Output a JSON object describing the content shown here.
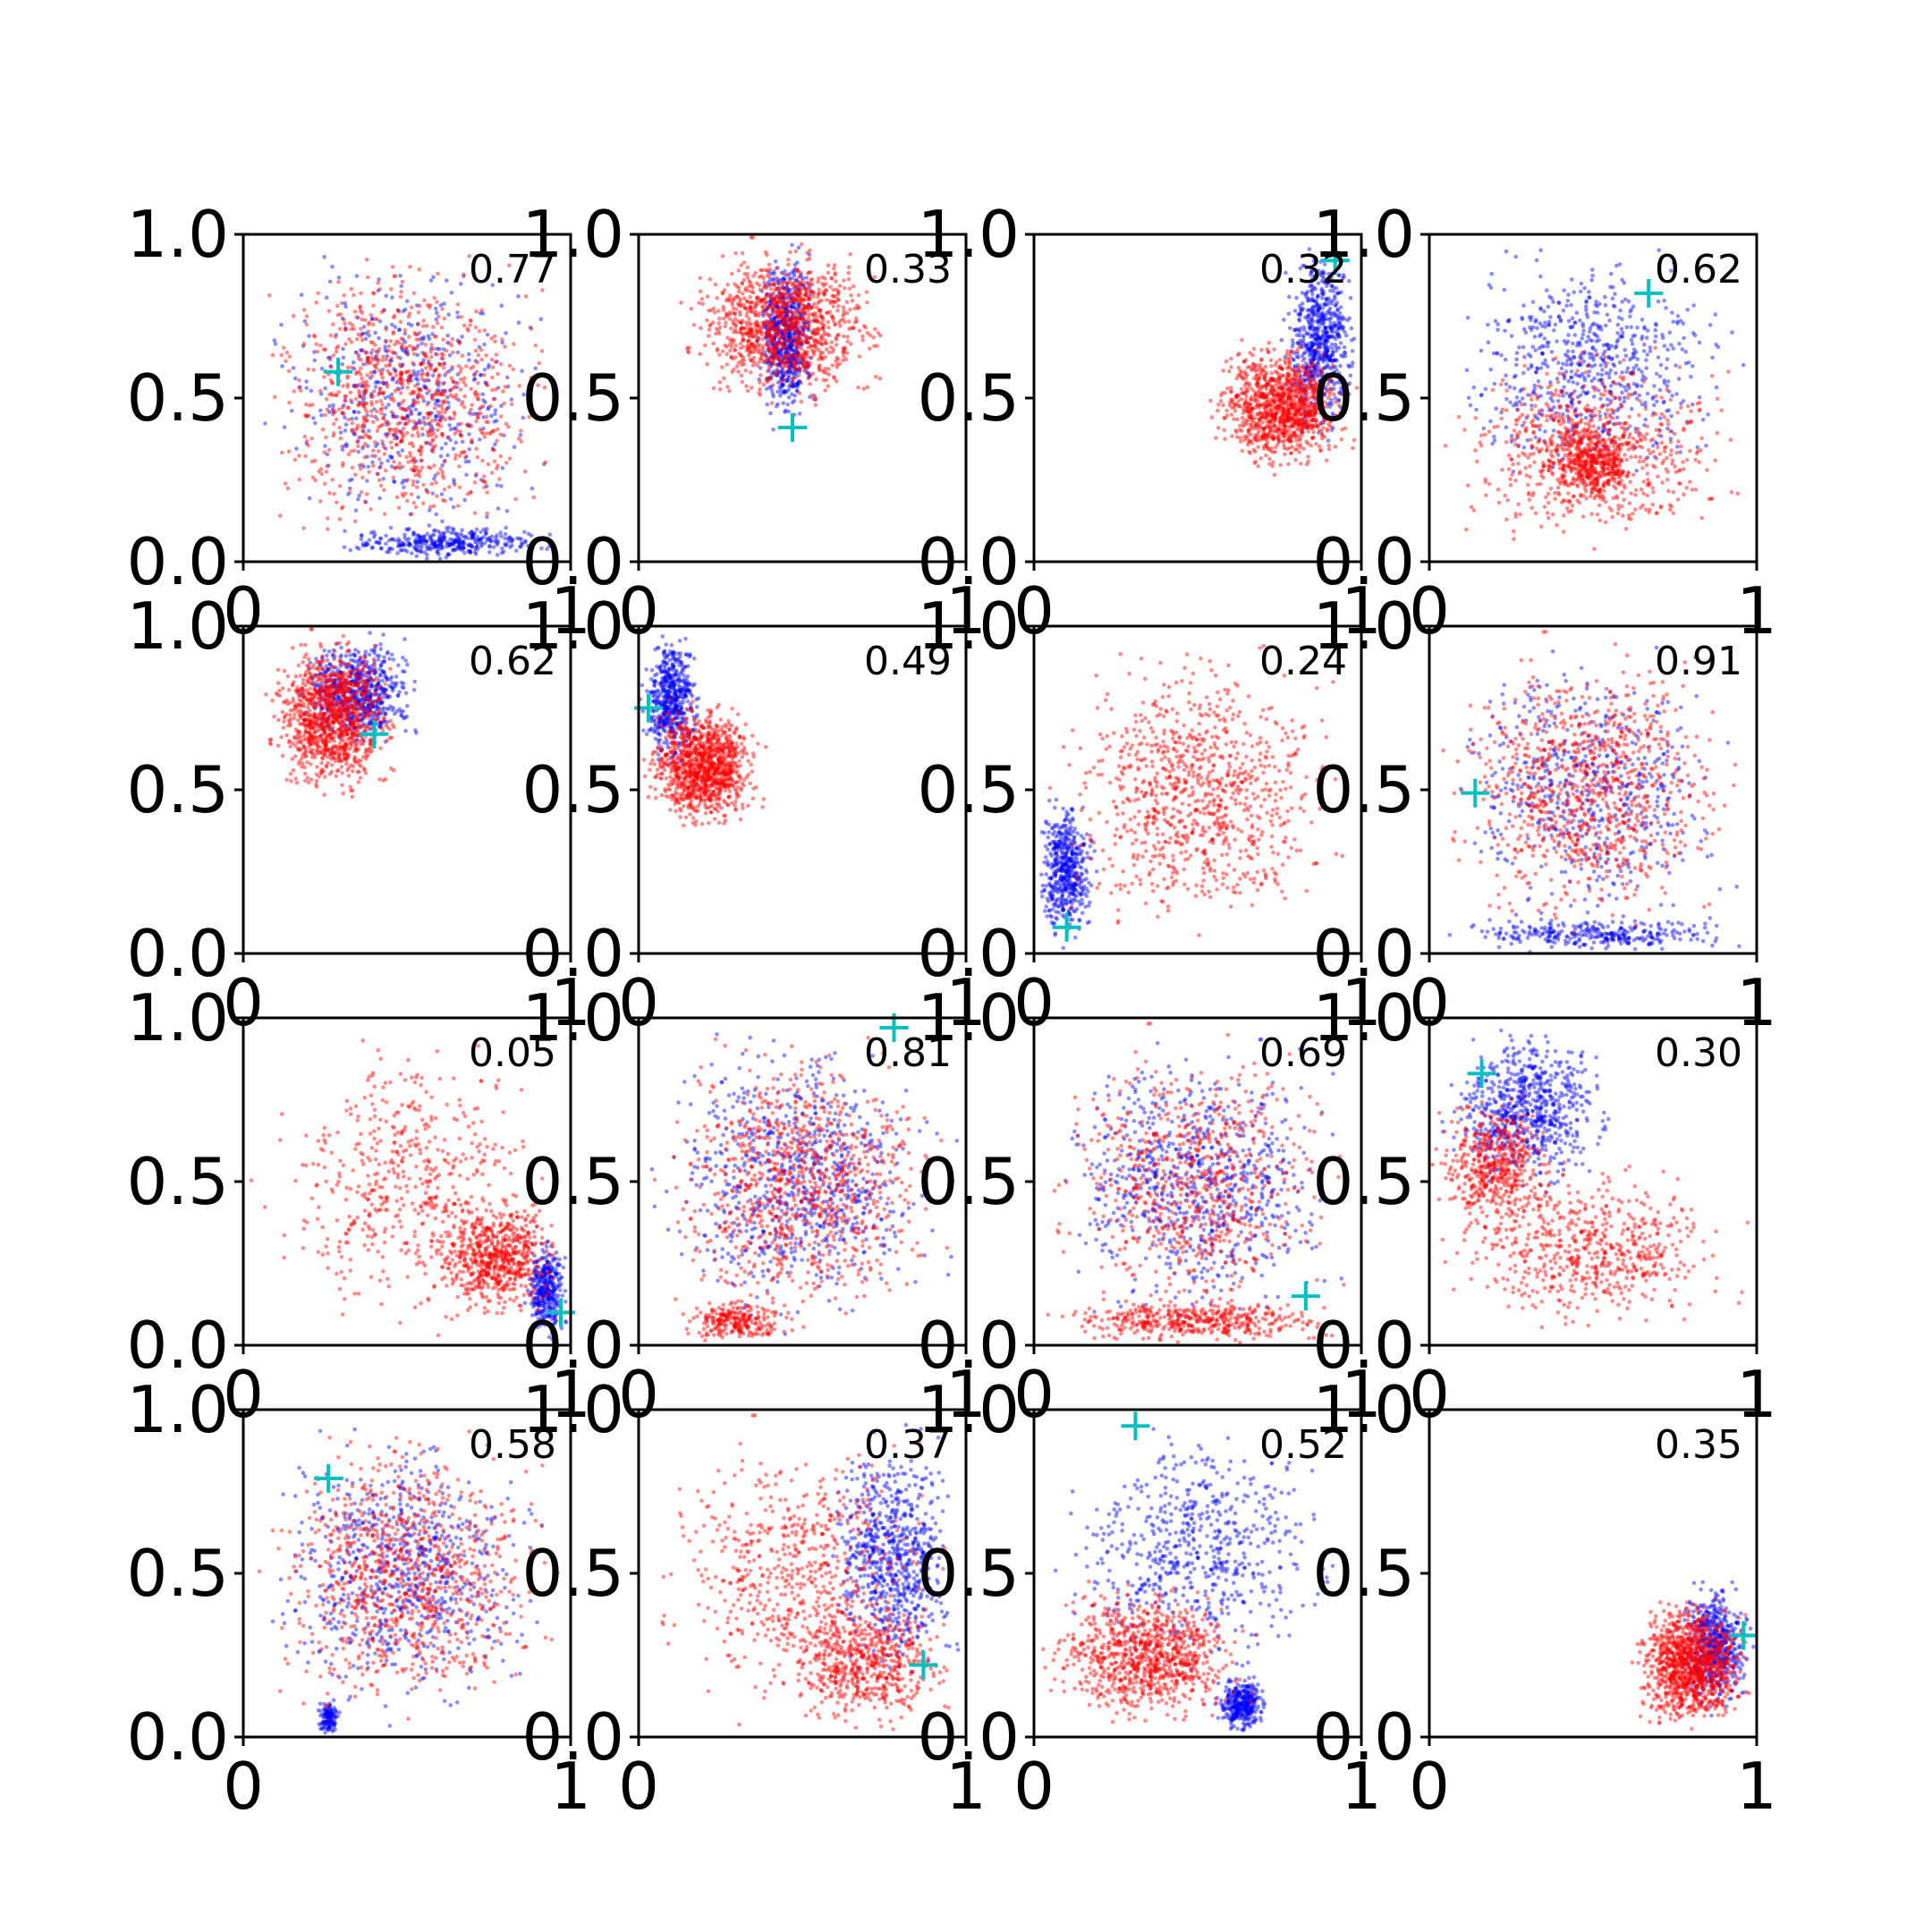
{
  "chart_data": {
    "type": "scatter",
    "grid": false,
    "layout": "4x4 grid of scatter panels",
    "xlim": [
      0,
      1
    ],
    "ylim": [
      0,
      1
    ],
    "x_tick_labels": [
      "0",
      "1"
    ],
    "y_tick_labels": [
      "0.0",
      "0.5",
      "1.0"
    ],
    "colors": {
      "series_a": "#0000ff",
      "series_b": "#ff0000",
      "marker": "#00bfbf"
    },
    "panels": [
      {
        "label": "0.77",
        "marker": [
          0.29,
          0.58
        ],
        "a": [
          {
            "x": [
              0.0,
              1.0
            ],
            "y": [
              0.0,
              1.0
            ],
            "n": 500
          },
          {
            "x": [
              0.25,
              1.0
            ],
            "y": [
              0.0,
              0.12
            ],
            "n": 350
          }
        ],
        "b": [
          {
            "x": [
              0.0,
              1.0
            ],
            "y": [
              0.0,
              1.0
            ],
            "n": 900
          }
        ]
      },
      {
        "label": "0.33",
        "marker": [
          0.47,
          0.41
        ],
        "a": [
          {
            "x": [
              0.35,
              0.55
            ],
            "y": [
              0.38,
              1.0
            ],
            "n": 650
          }
        ],
        "b": [
          {
            "x": [
              0.1,
              0.8
            ],
            "y": [
              0.45,
              1.0
            ],
            "n": 1100
          }
        ]
      },
      {
        "label": "0.32",
        "marker": [
          0.92,
          0.92
        ],
        "a": [
          {
            "x": [
              0.75,
              1.0
            ],
            "y": [
              0.35,
              1.0
            ],
            "n": 650
          }
        ],
        "b": [
          {
            "x": [
              0.52,
              1.0
            ],
            "y": [
              0.25,
              0.7
            ],
            "n": 1100
          }
        ]
      },
      {
        "label": "0.62",
        "marker": [
          0.67,
          0.82
        ],
        "a": [
          {
            "x": [
              0.0,
              1.0
            ],
            "y": [
              0.2,
              1.0
            ],
            "n": 650
          }
        ],
        "b": [
          {
            "x": [
              0.0,
              1.0
            ],
            "y": [
              0.0,
              0.7
            ],
            "n": 700
          },
          {
            "x": [
              0.35,
              0.65
            ],
            "y": [
              0.15,
              0.45
            ],
            "n": 400
          }
        ]
      },
      {
        "label": "0.62",
        "marker": [
          0.4,
          0.67
        ],
        "a": [
          {
            "x": [
              0.15,
              0.55
            ],
            "y": [
              0.6,
              1.0
            ],
            "n": 650
          }
        ],
        "b": [
          {
            "x": [
              0.05,
              0.5
            ],
            "y": [
              0.45,
              1.0
            ],
            "n": 1100
          }
        ]
      },
      {
        "label": "0.49",
        "marker": [
          0.03,
          0.75
        ],
        "a": [
          {
            "x": [
              0.0,
              0.2
            ],
            "y": [
              0.55,
              1.0
            ],
            "n": 550
          }
        ],
        "b": [
          {
            "x": [
              0.0,
              0.4
            ],
            "y": [
              0.35,
              0.8
            ],
            "n": 1100
          }
        ]
      },
      {
        "label": "0.24",
        "marker": [
          0.1,
          0.08
        ],
        "a": [
          {
            "x": [
              0.0,
              0.2
            ],
            "y": [
              0.0,
              0.5
            ],
            "n": 500
          }
        ],
        "b": [
          {
            "x": [
              0.0,
              1.0
            ],
            "y": [
              0.0,
              1.0
            ],
            "n": 900
          }
        ]
      },
      {
        "label": "0.91",
        "marker": [
          0.14,
          0.49
        ],
        "a": [
          {
            "x": [
              0.0,
              1.0
            ],
            "y": [
              0.0,
              1.0
            ],
            "n": 550
          },
          {
            "x": [
              0.0,
              1.0
            ],
            "y": [
              0.0,
              0.12
            ],
            "n": 300
          }
        ],
        "b": [
          {
            "x": [
              0.0,
              1.0
            ],
            "y": [
              0.0,
              1.0
            ],
            "n": 900
          }
        ]
      },
      {
        "label": "0.05",
        "marker": [
          0.97,
          0.1
        ],
        "a": [
          {
            "x": [
              0.85,
              1.0
            ],
            "y": [
              0.0,
              0.35
            ],
            "n": 350
          }
        ],
        "b": [
          {
            "x": [
              0.0,
              1.0
            ],
            "y": [
              0.0,
              1.0
            ],
            "n": 500
          },
          {
            "x": [
              0.55,
              1.0
            ],
            "y": [
              0.05,
              0.5
            ],
            "n": 650
          }
        ]
      },
      {
        "label": "0.81",
        "marker": [
          0.78,
          0.97
        ],
        "a": [
          {
            "x": [
              0.0,
              1.0
            ],
            "y": [
              0.0,
              1.0
            ],
            "n": 750
          }
        ],
        "b": [
          {
            "x": [
              0.0,
              1.0
            ],
            "y": [
              0.0,
              1.0
            ],
            "n": 900
          },
          {
            "x": [
              0.1,
              0.5
            ],
            "y": [
              0.0,
              0.15
            ],
            "n": 250
          }
        ]
      },
      {
        "label": "0.69",
        "marker": [
          0.83,
          0.15
        ],
        "a": [
          {
            "x": [
              0.0,
              1.0
            ],
            "y": [
              0.0,
              1.0
            ],
            "n": 750
          }
        ],
        "b": [
          {
            "x": [
              0.0,
              1.0
            ],
            "y": [
              0.0,
              1.0
            ],
            "n": 700
          },
          {
            "x": [
              0.0,
              1.0
            ],
            "y": [
              0.0,
              0.15
            ],
            "n": 450
          }
        ]
      },
      {
        "label": "0.30",
        "marker": [
          0.16,
          0.83
        ],
        "a": [
          {
            "x": [
              0.0,
              0.6
            ],
            "y": [
              0.45,
              1.0
            ],
            "n": 700
          }
        ],
        "b": [
          {
            "x": [
              0.0,
              0.4
            ],
            "y": [
              0.3,
              0.8
            ],
            "n": 500
          },
          {
            "x": [
              0.0,
              1.0
            ],
            "y": [
              0.0,
              0.6
            ],
            "n": 600
          }
        ]
      },
      {
        "label": "0.58",
        "marker": [
          0.26,
          0.79
        ],
        "a": [
          {
            "x": [
              0.0,
              1.0
            ],
            "y": [
              0.0,
              1.0
            ],
            "n": 700
          },
          {
            "x": [
              0.22,
              0.3
            ],
            "y": [
              0.0,
              0.12
            ],
            "n": 120
          }
        ],
        "b": [
          {
            "x": [
              0.0,
              1.0
            ],
            "y": [
              0.0,
              1.0
            ],
            "n": 900
          }
        ]
      },
      {
        "label": "0.37",
        "marker": [
          0.87,
          0.22
        ],
        "a": [
          {
            "x": [
              0.55,
              1.0
            ],
            "y": [
              0.1,
              1.0
            ],
            "n": 700
          }
        ],
        "b": [
          {
            "x": [
              0.0,
              1.0
            ],
            "y": [
              0.0,
              1.0
            ],
            "n": 600
          },
          {
            "x": [
              0.4,
              1.0
            ],
            "y": [
              0.0,
              0.45
            ],
            "n": 550
          }
        ]
      },
      {
        "label": "0.52",
        "marker": [
          0.31,
          0.95
        ],
        "a": [
          {
            "x": [
              0.0,
              1.0
            ],
            "y": [
              0.15,
              1.0
            ],
            "n": 600
          },
          {
            "x": [
              0.55,
              0.72
            ],
            "y": [
              0.0,
              0.2
            ],
            "n": 350
          }
        ],
        "b": [
          {
            "x": [
              0.0,
              0.7
            ],
            "y": [
              0.0,
              0.5
            ],
            "n": 900
          }
        ]
      },
      {
        "label": "0.35",
        "marker": [
          0.96,
          0.31
        ],
        "a": [
          {
            "x": [
              0.75,
              1.0
            ],
            "y": [
              0.05,
              0.5
            ],
            "n": 550
          }
        ],
        "b": [
          {
            "x": [
              0.6,
              1.0
            ],
            "y": [
              0.0,
              0.45
            ],
            "n": 1100
          }
        ]
      }
    ]
  }
}
